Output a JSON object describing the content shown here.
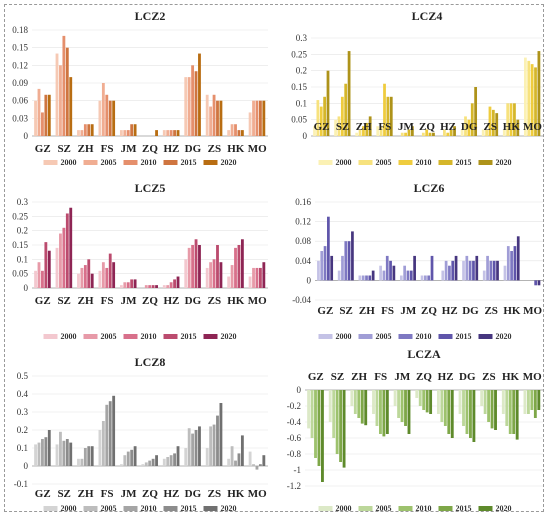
{
  "chart_data": [
    {
      "type": "bar",
      "title": "LCZ2",
      "categories": [
        "GZ",
        "SZ",
        "ZH",
        "FS",
        "JM",
        "ZQ",
        "HZ",
        "DG",
        "ZS",
        "HK",
        "MO"
      ],
      "ylim": [
        0,
        0.18
      ],
      "yticks": [
        "0",
        "0.03",
        "0.06",
        "0.09",
        "0.12",
        "0.15",
        "0.18"
      ],
      "colors": [
        "#f6c9b4",
        "#f0ad92",
        "#e58f6c",
        "#cf7540",
        "#b86d12"
      ],
      "series": [
        {
          "name": "2000",
          "values": [
            0.06,
            0.14,
            0.01,
            0.06,
            0.01,
            0.0,
            0.01,
            0.1,
            0.07,
            0.01,
            0.04
          ]
        },
        {
          "name": "2005",
          "values": [
            0.08,
            0.12,
            0.01,
            0.09,
            0.01,
            0.0,
            0.01,
            0.1,
            0.05,
            0.02,
            0.06
          ]
        },
        {
          "name": "2010",
          "values": [
            0.04,
            0.17,
            0.02,
            0.07,
            0.01,
            0.0,
            0.01,
            0.12,
            0.07,
            0.02,
            0.06
          ]
        },
        {
          "name": "2015",
          "values": [
            0.07,
            0.15,
            0.02,
            0.06,
            0.02,
            0.0,
            0.01,
            0.11,
            0.06,
            0.01,
            0.06
          ]
        },
        {
          "name": "2020",
          "values": [
            0.07,
            0.1,
            0.02,
            0.06,
            0.02,
            0.01,
            0.01,
            0.14,
            0.06,
            0.01,
            0.06
          ]
        }
      ]
    },
    {
      "type": "bar",
      "title": "LCZ4",
      "categories": [
        "GZ",
        "SZ",
        "ZH",
        "FS",
        "JM",
        "ZQ",
        "HZ",
        "DG",
        "ZS",
        "HK",
        "MO"
      ],
      "ylim": [
        0,
        0.3
      ],
      "yticks": [
        "0",
        "0.05",
        "0.1",
        "0.15",
        "0.2",
        "0.25",
        "0.3"
      ],
      "colors": [
        "#fbf1b4",
        "#f7e27e",
        "#efcc3e",
        "#d5b62a",
        "#ae931a"
      ],
      "series": [
        {
          "name": "2000",
          "values": [
            0.03,
            0.05,
            0.01,
            0.03,
            0.0,
            0.0,
            0.0,
            0.02,
            0.02,
            0.02,
            0.24
          ]
        },
        {
          "name": "2005",
          "values": [
            0.11,
            0.06,
            0.02,
            0.03,
            0.01,
            0.01,
            0.02,
            0.06,
            0.02,
            0.1,
            0.23
          ]
        },
        {
          "name": "2010",
          "values": [
            0.09,
            0.12,
            0.03,
            0.16,
            0.01,
            0.02,
            0.01,
            0.05,
            0.09,
            0.1,
            0.22
          ]
        },
        {
          "name": "2015",
          "values": [
            0.12,
            0.16,
            0.04,
            0.12,
            0.02,
            0.01,
            0.02,
            0.1,
            0.08,
            0.1,
            0.21
          ]
        },
        {
          "name": "2020",
          "values": [
            0.2,
            0.26,
            0.06,
            0.12,
            0.03,
            0.01,
            0.03,
            0.15,
            0.07,
            0.05,
            0.26
          ]
        }
      ]
    },
    {
      "type": "bar",
      "title": "LCZ5",
      "categories": [
        "GZ",
        "SZ",
        "ZH",
        "FS",
        "JM",
        "ZQ",
        "HZ",
        "DG",
        "ZS",
        "HK",
        "MO"
      ],
      "ylim": [
        0,
        0.3
      ],
      "yticks": [
        "0",
        "0.05",
        "0.1",
        "0.15",
        "0.2",
        "0.25",
        "0.3"
      ],
      "colors": [
        "#f3c8cf",
        "#e79aa8",
        "#d8708b",
        "#bb4b6e",
        "#8e2554"
      ],
      "series": [
        {
          "name": "2000",
          "values": [
            0.06,
            0.14,
            0.05,
            0.06,
            0.01,
            0.0,
            0.01,
            0.1,
            0.07,
            0.04,
            0.04
          ]
        },
        {
          "name": "2005",
          "values": [
            0.09,
            0.19,
            0.07,
            0.09,
            0.02,
            0.01,
            0.01,
            0.14,
            0.09,
            0.08,
            0.07
          ]
        },
        {
          "name": "2010",
          "values": [
            0.06,
            0.21,
            0.08,
            0.07,
            0.02,
            0.01,
            0.02,
            0.15,
            0.1,
            0.14,
            0.07
          ]
        },
        {
          "name": "2015",
          "values": [
            0.16,
            0.26,
            0.1,
            0.12,
            0.03,
            0.01,
            0.03,
            0.17,
            0.15,
            0.15,
            0.07
          ]
        },
        {
          "name": "2020",
          "values": [
            0.13,
            0.28,
            0.05,
            0.09,
            0.03,
            0.01,
            0.04,
            0.15,
            0.09,
            0.17,
            0.09
          ]
        }
      ]
    },
    {
      "type": "bar",
      "title": "LCZ6",
      "categories": [
        "GZ",
        "SZ",
        "ZH",
        "FS",
        "JM",
        "ZQ",
        "HZ",
        "DG",
        "ZS",
        "HK",
        "MO"
      ],
      "ylim": [
        -0.04,
        0.16
      ],
      "yticks": [
        "-0.04",
        "0",
        "0.04",
        "0.08",
        "0.12",
        "0.16"
      ],
      "colors": [
        "#c4c2e6",
        "#a09dd6",
        "#7e78c2",
        "#5f55aa",
        "#46367f"
      ],
      "series": [
        {
          "name": "2000",
          "values": [
            0.04,
            0.02,
            0.01,
            0.03,
            0.01,
            0.01,
            0.02,
            0.04,
            0.02,
            0.03,
            0.0
          ]
        },
        {
          "name": "2005",
          "values": [
            0.06,
            0.05,
            0.01,
            0.02,
            0.03,
            0.01,
            0.04,
            0.05,
            0.05,
            0.07,
            0.0
          ]
        },
        {
          "name": "2010",
          "values": [
            0.07,
            0.08,
            0.01,
            0.05,
            0.02,
            0.01,
            0.03,
            0.04,
            0.04,
            0.06,
            0.0
          ]
        },
        {
          "name": "2015",
          "values": [
            0.13,
            0.08,
            0.01,
            0.04,
            0.02,
            0.05,
            0.04,
            0.04,
            0.04,
            0.07,
            -0.01
          ]
        },
        {
          "name": "2020",
          "values": [
            0.05,
            0.1,
            0.02,
            0.03,
            0.05,
            0.0,
            0.05,
            0.05,
            0.04,
            0.09,
            -0.01
          ]
        }
      ]
    },
    {
      "type": "bar",
      "title": "LCZ8",
      "categories": [
        "GZ",
        "SZ",
        "ZH",
        "FS",
        "JM",
        "ZQ",
        "HZ",
        "DG",
        "ZS",
        "HK",
        "MO"
      ],
      "ylim": [
        -0.1,
        0.5
      ],
      "yticks": [
        "-0.1",
        "0",
        "0.1",
        "0.2",
        "0.3",
        "0.4",
        "0.5"
      ],
      "colors": [
        "#d4d4d4",
        "#bdbdbd",
        "#a5a5a5",
        "#8c8c8c",
        "#707070"
      ],
      "series": [
        {
          "name": "2000",
          "values": [
            0.12,
            0.12,
            0.04,
            0.2,
            0.01,
            0.01,
            0.04,
            0.1,
            0.1,
            0.04,
            0.08
          ]
        },
        {
          "name": "2005",
          "values": [
            0.13,
            0.19,
            0.04,
            0.25,
            0.06,
            0.02,
            0.05,
            0.21,
            0.22,
            0.11,
            0.01
          ]
        },
        {
          "name": "2010",
          "values": [
            0.15,
            0.14,
            0.1,
            0.34,
            0.08,
            0.03,
            0.06,
            0.18,
            0.23,
            0.03,
            -0.02
          ]
        },
        {
          "name": "2015",
          "values": [
            0.16,
            0.15,
            0.11,
            0.36,
            0.09,
            0.04,
            0.07,
            0.2,
            0.28,
            0.07,
            0.01
          ]
        },
        {
          "name": "2020",
          "values": [
            0.2,
            0.13,
            0.11,
            0.39,
            0.11,
            0.06,
            0.11,
            0.22,
            0.35,
            0.17,
            0.06
          ]
        }
      ]
    },
    {
      "type": "bar",
      "title": "LCZA",
      "categories": [
        "GZ",
        "SZ",
        "ZH",
        "FS",
        "JM",
        "ZQ",
        "HZ",
        "DG",
        "ZS",
        "HK",
        "MO"
      ],
      "ylim": [
        -1.2,
        0
      ],
      "yticks": [
        "-1.2",
        "-1",
        "-0.8",
        "-0.6",
        "-0.4",
        "-0.2",
        "0"
      ],
      "colors": [
        "#dce9c7",
        "#bcd79a",
        "#9dc26d",
        "#7ea748",
        "#5e8a2b"
      ],
      "series": [
        {
          "name": "2000",
          "values": [
            -0.48,
            -0.4,
            -0.2,
            -0.3,
            -0.2,
            -0.1,
            -0.3,
            -0.3,
            -0.2,
            -0.3,
            -0.3
          ]
        },
        {
          "name": "2005",
          "values": [
            -0.6,
            -0.6,
            -0.3,
            -0.45,
            -0.35,
            -0.2,
            -0.4,
            -0.45,
            -0.3,
            -0.45,
            -0.3
          ]
        },
        {
          "name": "2010",
          "values": [
            -0.85,
            -0.8,
            -0.35,
            -0.55,
            -0.4,
            -0.25,
            -0.45,
            -0.55,
            -0.4,
            -0.55,
            -0.25
          ]
        },
        {
          "name": "2015",
          "values": [
            -0.95,
            -0.9,
            -0.42,
            -0.58,
            -0.45,
            -0.28,
            -0.55,
            -0.6,
            -0.48,
            -0.55,
            -0.35
          ]
        },
        {
          "name": "2020",
          "values": [
            -1.15,
            -0.97,
            -0.44,
            -0.55,
            -0.55,
            -0.3,
            -0.6,
            -0.65,
            -0.5,
            -0.62,
            -0.25
          ]
        }
      ]
    }
  ]
}
